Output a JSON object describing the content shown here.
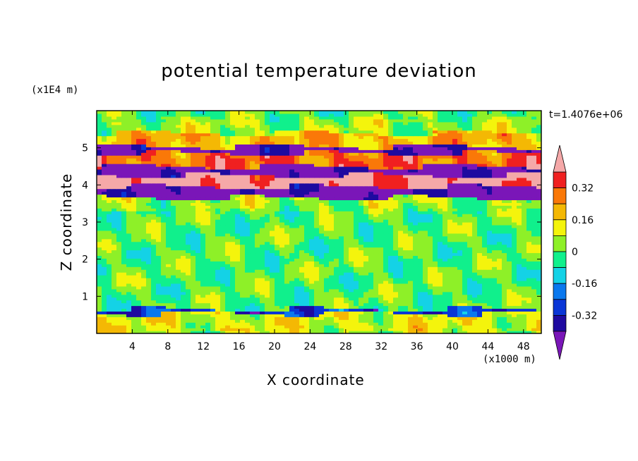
{
  "chart_data": {
    "type": "heatmap",
    "title": "potential temperature deviation",
    "xlabel": "X coordinate",
    "ylabel": "Z coordinate",
    "x_unit_label": "(x1000 m)",
    "y_unit_label": "(x1E4 m)",
    "time_label": "t=1.4076e+06",
    "xlim": [
      0,
      50
    ],
    "ylim": [
      0,
      6
    ],
    "x_ticks": [
      "4",
      "8",
      "12",
      "16",
      "20",
      "24",
      "28",
      "32",
      "36",
      "40",
      "44",
      "48"
    ],
    "y_ticks": [
      "1",
      "2",
      "3",
      "4",
      "5"
    ],
    "colorbar": {
      "levels": [
        -0.4,
        -0.32,
        -0.24,
        -0.16,
        -0.08,
        0,
        0.08,
        0.16,
        0.24,
        0.32,
        0.4
      ],
      "tick_labels": [
        "0.32",
        "0.16",
        "0",
        "-0.16",
        "-0.32"
      ],
      "colors": [
        "#7a16b8",
        "#1e0aa0",
        "#0a36d6",
        "#0a78ee",
        "#14d2e6",
        "#10f08c",
        "#8ef028",
        "#f4f40c",
        "#f4b804",
        "#fa7808",
        "#f02020",
        "#f5a8a8"
      ],
      "extend": "both"
    },
    "bands": [
      {
        "z": [
          5.4,
          5.8
        ],
        "value": 0.05
      },
      {
        "z": [
          5.05,
          5.4
        ],
        "value": 0.2
      },
      {
        "z": [
          4.85,
          5.05
        ],
        "value": -0.45
      },
      {
        "z": [
          4.5,
          4.85
        ],
        "value": 0.3
      },
      {
        "z": [
          4.25,
          4.5
        ],
        "value": -0.45
      },
      {
        "z": [
          3.95,
          4.25
        ],
        "value": 0.45
      },
      {
        "z": [
          3.65,
          3.95
        ],
        "value": -0.45
      },
      {
        "z": [
          3.35,
          3.65
        ],
        "value": 0.05
      },
      {
        "z": [
          0.65,
          3.35
        ],
        "value": 0.0
      },
      {
        "z": [
          0.55,
          0.65
        ],
        "value": -0.3
      },
      {
        "z": [
          0,
          0.55
        ],
        "value": 0.1
      }
    ]
  }
}
